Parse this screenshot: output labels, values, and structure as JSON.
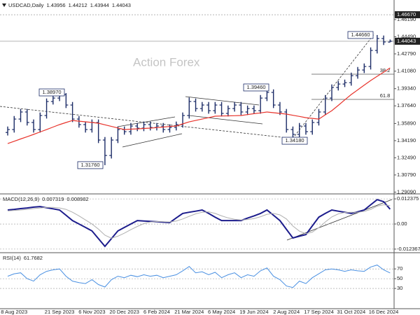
{
  "chart_data": [
    {
      "type": "ohlc",
      "title": "USDCAD,Daily",
      "watermark": "Action Forex",
      "color": "#1b2b66",
      "grid": false,
      "ylim": [
        1.2905,
        1.4813
      ],
      "yticks": [
        {
          "value": 1.4619,
          "label": "1.46190"
        },
        {
          "value": 1.4449,
          "label": "1.44490"
        },
        {
          "value": 1.4279,
          "label": "1.42790"
        },
        {
          "value": 1.4108,
          "label": "1.41080"
        },
        {
          "value": 1.3934,
          "label": "1.39340"
        },
        {
          "value": 1.3764,
          "label": "1.37640"
        },
        {
          "value": 1.3589,
          "label": "1.35890"
        },
        {
          "value": 1.3419,
          "label": "1.34190"
        },
        {
          "value": 1.3249,
          "label": "1.32490"
        },
        {
          "value": 1.3079,
          "label": "1.30790"
        },
        {
          "value": 1.2909,
          "label": "1.29090"
        }
      ],
      "price_marks": [
        {
          "value": 1.4667,
          "label": "1.46670"
        },
        {
          "value": 1.44043,
          "label": "1.44043"
        }
      ],
      "annotations": [
        {
          "value": 1.3897,
          "label": "1.38970"
        },
        {
          "value": 1.3176,
          "label": "1.31760"
        },
        {
          "value": 1.3946,
          "label": "1.39460"
        },
        {
          "value": 1.3418,
          "label": "1.34180"
        },
        {
          "value": 1.4466,
          "label": "1.44660"
        }
      ],
      "fib_labels": [
        "38.2",
        "61.8"
      ],
      "ohlc": {
        "open": [
          1.35,
          1.3529,
          1.3633,
          1.3703,
          1.3599,
          1.3529,
          1.3668,
          1.3807,
          1.3841,
          1.3876,
          1.3772,
          1.3633,
          1.3578,
          1.3529,
          1.3599,
          1.3425,
          1.3272,
          1.3425,
          1.3529,
          1.3508,
          1.3564,
          1.3543,
          1.3578,
          1.355,
          1.3564,
          1.3529,
          1.355,
          1.3578,
          1.3668,
          1.3807,
          1.3737,
          1.3772,
          1.3716,
          1.3772,
          1.3689,
          1.3737,
          1.3772,
          1.3703,
          1.3737,
          1.3716,
          1.3841,
          1.3897,
          1.3772,
          1.3703,
          1.3529,
          1.3481,
          1.3564,
          1.3508,
          1.3599,
          1.3703,
          1.3841,
          1.3946,
          1.398,
          1.3994,
          1.4063,
          1.4119,
          1.4154,
          1.4313,
          1.4431,
          1.43956
        ],
        "high": [
          1.3559,
          1.3663,
          1.3733,
          1.3733,
          1.3629,
          1.3698,
          1.3837,
          1.3871,
          1.3897,
          1.389,
          1.3802,
          1.3663,
          1.3608,
          1.3629,
          1.3629,
          1.3455,
          1.3455,
          1.3559,
          1.3559,
          1.3594,
          1.3594,
          1.3608,
          1.3608,
          1.3594,
          1.3594,
          1.358,
          1.3608,
          1.3698,
          1.3847,
          1.3837,
          1.3802,
          1.3802,
          1.3802,
          1.3802,
          1.3767,
          1.3802,
          1.3802,
          1.3767,
          1.3767,
          1.3871,
          1.3946,
          1.3927,
          1.3802,
          1.3733,
          1.3559,
          1.3594,
          1.3594,
          1.3629,
          1.3733,
          1.3871,
          1.3976,
          1.401,
          1.4024,
          1.4093,
          1.4149,
          1.4184,
          1.4343,
          1.4466,
          1.4461,
          1.44212
        ],
        "low": [
          1.347,
          1.3499,
          1.3603,
          1.3569,
          1.3499,
          1.3499,
          1.3638,
          1.3777,
          1.3811,
          1.3742,
          1.3603,
          1.3548,
          1.3499,
          1.3499,
          1.3395,
          1.3176,
          1.3242,
          1.3395,
          1.3478,
          1.3478,
          1.3513,
          1.3513,
          1.352,
          1.352,
          1.3499,
          1.3499,
          1.352,
          1.3548,
          1.3638,
          1.3707,
          1.3707,
          1.3686,
          1.3686,
          1.3659,
          1.3659,
          1.3707,
          1.3673,
          1.3673,
          1.3686,
          1.3686,
          1.3811,
          1.3742,
          1.3673,
          1.3499,
          1.3418,
          1.3451,
          1.3478,
          1.3478,
          1.3569,
          1.3673,
          1.3811,
          1.3916,
          1.395,
          1.3964,
          1.4033,
          1.4089,
          1.4124,
          1.4283,
          1.4367,
          1.43944
        ],
        "close": [
          1.3529,
          1.3633,
          1.3703,
          1.3599,
          1.3529,
          1.3668,
          1.3807,
          1.3841,
          1.3876,
          1.3772,
          1.3633,
          1.3578,
          1.3529,
          1.3599,
          1.3425,
          1.3272,
          1.3425,
          1.3529,
          1.3508,
          1.3564,
          1.3543,
          1.3578,
          1.355,
          1.3564,
          1.3529,
          1.355,
          1.3578,
          1.3668,
          1.3807,
          1.3737,
          1.3772,
          1.3716,
          1.3772,
          1.3689,
          1.3737,
          1.3772,
          1.3703,
          1.3737,
          1.3716,
          1.3841,
          1.3897,
          1.3772,
          1.3703,
          1.3529,
          1.3481,
          1.3564,
          1.3508,
          1.3599,
          1.3703,
          1.3841,
          1.3946,
          1.398,
          1.3994,
          1.4063,
          1.4119,
          1.4154,
          1.4313,
          1.4431,
          1.4397,
          1.44043
        ]
      },
      "ma": {
        "color": "#e8342c",
        "values": [
          1.339,
          1.3413,
          1.3436,
          1.3458,
          1.3481,
          1.3505,
          1.3529,
          1.3554,
          1.3578,
          1.3599,
          1.3619,
          1.3612,
          1.3606,
          1.3599,
          1.3592,
          1.3576,
          1.356,
          1.3545,
          1.3529,
          1.3533,
          1.3536,
          1.354,
          1.3543,
          1.3548,
          1.3554,
          1.3559,
          1.3564,
          1.3585,
          1.3605,
          1.3619,
          1.3633,
          1.3647,
          1.3661,
          1.3663,
          1.3665,
          1.3666,
          1.3668,
          1.3677,
          1.3686,
          1.3694,
          1.3703,
          1.3696,
          1.3689,
          1.3682,
          1.367,
          1.3659,
          1.3647,
          1.364,
          1.3633,
          1.3675,
          1.3716,
          1.3769,
          1.3823,
          1.3876,
          1.3922,
          1.3969,
          1.4015,
          1.4057,
          1.4098,
          1.414
        ]
      }
    },
    {
      "type": "line",
      "title": "MACD(12,26,9)",
      "grid": true,
      "ylim": [
        -0.0131,
        0.0138
      ],
      "yticks": [
        0.012375,
        {
          "value": 0,
          "label": "0.00"
        },
        -0.012367
      ],
      "series": [
        {
          "color": "#1c1c8c",
          "width": 2,
          "values": [
            0.0069,
            0.0072,
            0.0076,
            0.0079,
            0.0083,
            0.0086,
            0.008,
            0.0075,
            0.0069,
            0.0043,
            0.0017,
            0.0,
            -0.0017,
            -0.0034,
            -0.0072,
            -0.011,
            -0.0072,
            -0.0034,
            -0.0017,
            0.0,
            0.0017,
            0.0015,
            0.0013,
            0.0011,
            0.0009,
            0.0007,
            0.003,
            0.0052,
            0.0058,
            0.0063,
            0.0069,
            0.0052,
            0.0034,
            0.0017,
            0.0017,
            0.0017,
            0.0017,
            0.0029,
            0.004,
            0.0052,
            0.0069,
            0.0043,
            0.0017,
            -0.0026,
            -0.0069,
            -0.006,
            -0.0052,
            -0.0009,
            0.0034,
            0.0052,
            0.0069,
            0.0063,
            0.0058,
            0.0052,
            0.006,
            0.0069,
            0.0095,
            0.012,
            0.011,
            0.007319
          ]
        },
        {
          "color": "#b0b0b0",
          "width": 1,
          "values": [
            0.0065,
            0.0067,
            0.0069,
            0.0072,
            0.0076,
            0.0079,
            0.0082,
            0.0082,
            0.0079,
            0.0072,
            0.0058,
            0.004,
            0.002,
            0.0,
            -0.0025,
            -0.0055,
            -0.007,
            -0.006,
            -0.0045,
            -0.0028,
            -0.0012,
            0.0002,
            0.001,
            0.0012,
            0.0011,
            0.001,
            0.0015,
            0.0025,
            0.0038,
            0.005,
            0.0058,
            0.006,
            0.0052,
            0.004,
            0.003,
            0.0023,
            0.002,
            0.0022,
            0.0027,
            0.0036,
            0.0048,
            0.0052,
            0.0045,
            0.0025,
            -0.001,
            -0.0035,
            -0.0048,
            -0.004,
            -0.0018,
            0.001,
            0.0035,
            0.005,
            0.0057,
            0.0058,
            0.0058,
            0.0062,
            0.0072,
            0.0088,
            0.0095,
            0.008982
          ]
        }
      ]
    },
    {
      "type": "line",
      "title": "RSI(14)",
      "grid": true,
      "ylim": [
        -10,
        96
      ],
      "yticks": [
        70,
        50,
        30
      ],
      "categories": [
        null,
        "8 Aug 2023",
        null,
        null,
        null,
        null,
        null,
        null,
        "21 Sep 2023",
        null,
        null,
        null,
        null,
        "6 Nov 2023",
        null,
        null,
        null,
        null,
        "20 Dec 2023",
        null,
        null,
        null,
        null,
        "6 Feb 2024",
        null,
        null,
        null,
        null,
        "21 Mar 2024",
        null,
        null,
        null,
        null,
        "6 May 2024",
        null,
        null,
        null,
        null,
        "19 Jun 2024",
        null,
        null,
        null,
        null,
        "2 Aug 2024",
        null,
        null,
        null,
        null,
        "17 Sep 2024",
        null,
        null,
        null,
        null,
        "31 Oct 2024",
        null,
        null,
        null,
        null,
        "16 Dec 2024",
        null
      ],
      "series": [
        {
          "color": "#4a90e2",
          "width": 1,
          "values": [
            55,
            60,
            62,
            50,
            45,
            58,
            65,
            68,
            70,
            55,
            45,
            42,
            40,
            48,
            38,
            33,
            48,
            55,
            52,
            57,
            54,
            58,
            55,
            57,
            52,
            55,
            58,
            66,
            75,
            62,
            64,
            58,
            63,
            52,
            58,
            62,
            52,
            58,
            55,
            66,
            72,
            55,
            48,
            35,
            32,
            45,
            40,
            52,
            60,
            68,
            70,
            68,
            65,
            68,
            66,
            65,
            74,
            78,
            68,
            61.7682
          ]
        }
      ]
    }
  ]
}
